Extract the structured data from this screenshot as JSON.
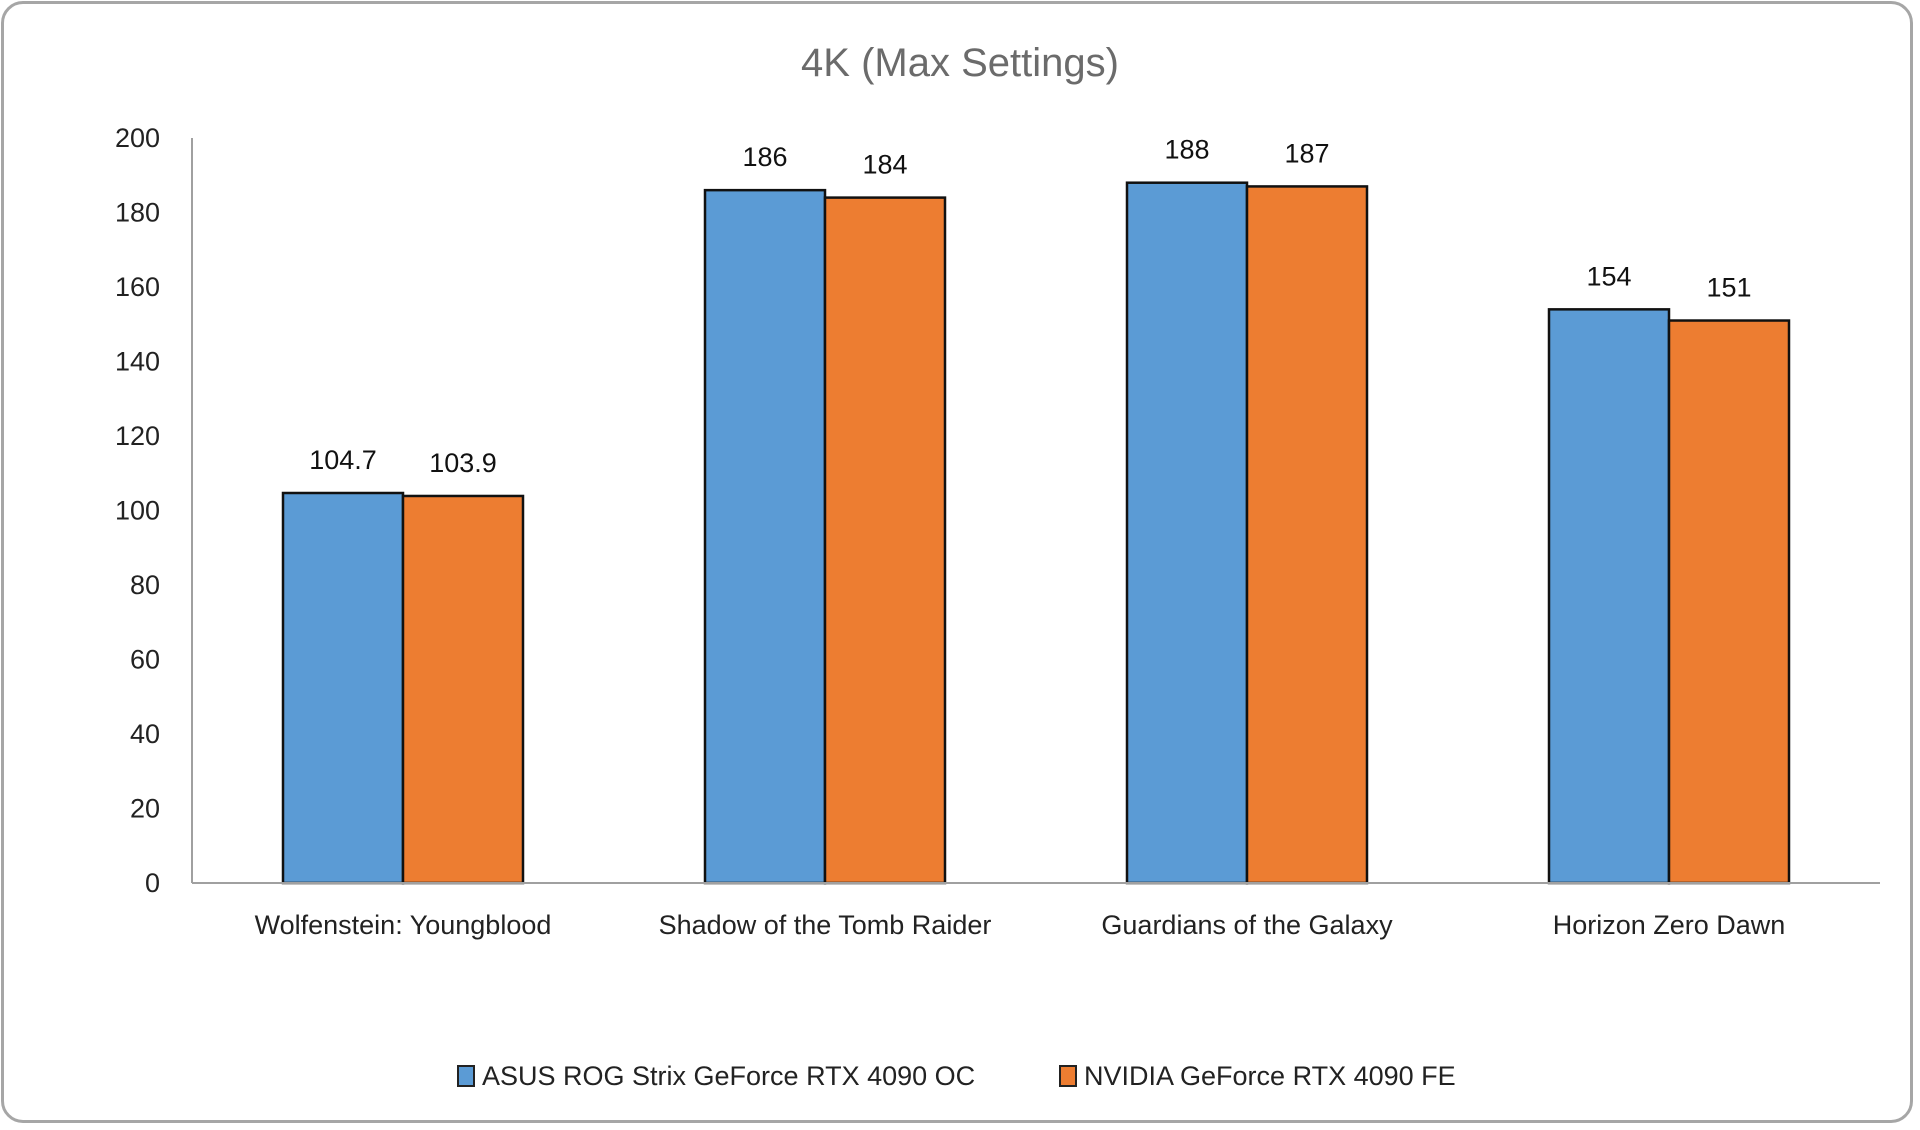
{
  "chart_data": {
    "type": "bar",
    "title": "4K (Max Settings)",
    "xlabel": "",
    "ylabel": "",
    "ylim": [
      0,
      200
    ],
    "yticks": [
      0,
      20,
      40,
      60,
      80,
      100,
      120,
      140,
      160,
      180,
      200
    ],
    "grid": false,
    "legend_position": "bottom",
    "categories": [
      "Wolfenstein: Youngblood",
      "Shadow of the Tomb Raider",
      "Guardians of the Galaxy",
      "Horizon Zero Dawn"
    ],
    "series": [
      {
        "name": "ASUS ROG Strix GeForce RTX 4090 OC",
        "color": "#5b9bd5",
        "values": [
          104.7,
          186,
          188,
          154
        ],
        "labels": [
          "104.7",
          "186",
          "188",
          "154"
        ]
      },
      {
        "name": "NVIDIA GeForce RTX 4090 FE",
        "color": "#ed7d31",
        "values": [
          103.9,
          184,
          187,
          151
        ],
        "labels": [
          "103.9",
          "184",
          "187",
          "151"
        ]
      }
    ]
  }
}
